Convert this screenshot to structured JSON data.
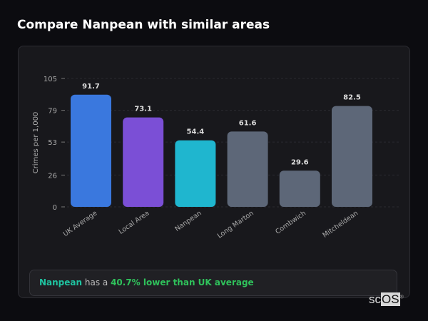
{
  "header": {
    "title": "Compare Nanpean with similar areas"
  },
  "chart_data": {
    "type": "bar",
    "categories": [
      "UK Average",
      "Local Area",
      "Nanpean",
      "Long Marton",
      "Combwich",
      "Mitcheldean"
    ],
    "values": [
      91.7,
      73.1,
      54.4,
      61.6,
      29.6,
      82.5
    ],
    "value_labels": [
      "91.7",
      "73.1",
      "54.4",
      "61.6",
      "29.6",
      "82.5"
    ],
    "colors": [
      "#3a78de",
      "#7b4fd6",
      "#1fb6cf",
      "#5d6778",
      "#5d6778",
      "#5d6778"
    ],
    "ylabel": "Crimes per 1,000",
    "ylim": [
      0,
      105
    ],
    "yticks": [
      0,
      26,
      53,
      79,
      105
    ],
    "grid": true
  },
  "summary": {
    "area": "Nanpean",
    "middle": " has a ",
    "comparison": "40.7% lower than UK average"
  },
  "logo": {
    "text_a": "sc",
    "text_b": "OS",
    "mark": "®"
  }
}
